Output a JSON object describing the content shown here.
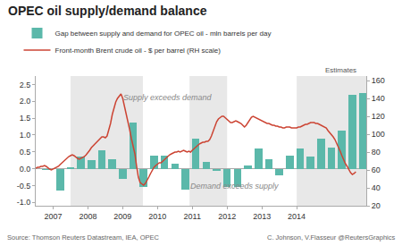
{
  "chart_data": {
    "type": "bar",
    "title": "OPEC oil supply/demand balance",
    "series": [
      {
        "name": "Gap between supply and demand for OPEC oil - mln barrels per day",
        "type": "bar",
        "color": "#5bb8aa",
        "axis": "y",
        "x": [
          2006.3,
          2006.7,
          2007.0,
          2007.3,
          2007.6,
          2007.9,
          2008.2,
          2008.5,
          2008.8,
          2009.1,
          2009.4,
          2009.7,
          2010.0,
          2010.3,
          2010.6,
          2010.9,
          2011.2,
          2011.5,
          2011.8,
          2012.1,
          2012.4,
          2012.7,
          2013.0,
          2013.3,
          2013.6,
          2013.9,
          2014.2,
          2014.5,
          2014.8,
          2015.1,
          2015.4
        ],
        "values": [
          -0.05,
          -0.65,
          0.05,
          0.35,
          0.25,
          0.55,
          0.28,
          -0.3,
          1.38,
          -0.55,
          0.38,
          0.4,
          0.15,
          -0.62,
          0.88,
          0.2,
          -0.07,
          -0.55,
          -0.55,
          0.1,
          0.6,
          0.28,
          -0.2,
          0.38,
          0.6,
          0.37,
          0.9,
          0.62,
          1.12,
          2.2,
          2.25
        ]
      },
      {
        "name": "Front-month Brent crude oil - $ per barrel (RH scale)",
        "type": "line",
        "color": "#cc4433",
        "axis": "y2",
        "x": [
          2006.0,
          2006.05,
          2006.1,
          2006.15,
          2006.2,
          2006.25,
          2006.3,
          2006.35,
          2006.4,
          2006.45,
          2006.5,
          2006.55,
          2006.6,
          2006.65,
          2006.7,
          2006.75,
          2006.8,
          2006.85,
          2006.9,
          2006.95,
          2007.0,
          2007.05,
          2007.1,
          2007.15,
          2007.2,
          2007.25,
          2007.3,
          2007.35,
          2007.4,
          2007.45,
          2007.5,
          2007.55,
          2007.6,
          2007.65,
          2007.7,
          2007.75,
          2007.8,
          2007.85,
          2007.9,
          2007.95,
          2008.0,
          2008.05,
          2008.1,
          2008.15,
          2008.2,
          2008.25,
          2008.3,
          2008.35,
          2008.4,
          2008.45,
          2008.5,
          2008.55,
          2008.6,
          2008.65,
          2008.7,
          2008.75,
          2008.8,
          2008.85,
          2008.9,
          2008.95,
          2009.0,
          2009.05,
          2009.1,
          2009.15,
          2009.2,
          2009.25,
          2009.3,
          2009.35,
          2009.4,
          2009.45,
          2009.5,
          2009.55,
          2009.6,
          2009.65,
          2009.7,
          2009.75,
          2009.8,
          2009.85,
          2009.9,
          2009.95,
          2010.0,
          2010.05,
          2010.1,
          2010.15,
          2010.2,
          2010.25,
          2010.3,
          2010.35,
          2010.4,
          2010.45,
          2010.5,
          2010.55,
          2010.6,
          2010.65,
          2010.7,
          2010.75,
          2010.8,
          2010.85,
          2010.9,
          2010.95,
          2011.0,
          2011.05,
          2011.1,
          2011.15,
          2011.2,
          2011.25,
          2011.3,
          2011.35,
          2011.4,
          2011.45,
          2011.5,
          2011.55,
          2011.6,
          2011.65,
          2011.7,
          2011.75,
          2011.8,
          2011.85,
          2011.9,
          2011.95,
          2012.0,
          2012.05,
          2012.1,
          2012.15,
          2012.2,
          2012.25,
          2012.3,
          2012.35,
          2012.4,
          2012.45,
          2012.5,
          2012.55,
          2012.6,
          2012.65,
          2012.7,
          2012.75,
          2012.8,
          2012.85,
          2012.9,
          2012.95,
          2013.0,
          2013.05,
          2013.1,
          2013.15,
          2013.2,
          2013.25,
          2013.3,
          2013.35,
          2013.4,
          2013.45,
          2013.5,
          2013.55,
          2013.6,
          2013.65,
          2013.7,
          2013.75,
          2013.8,
          2013.85,
          2013.9,
          2013.95,
          2014.0,
          2014.05,
          2014.1,
          2014.15,
          2014.2,
          2014.25,
          2014.3,
          2014.35,
          2014.4,
          2014.45,
          2014.5,
          2014.55,
          2014.6,
          2014.65,
          2014.7,
          2014.75,
          2014.8,
          2014.85,
          2014.9,
          2014.95,
          2015.0,
          2015.05,
          2015.1,
          2015.15,
          2015.2
        ],
        "values": [
          62,
          63,
          63,
          64,
          64,
          65,
          64,
          62,
          61,
          60,
          61,
          62,
          63,
          64,
          66,
          68,
          70,
          72,
          73,
          75,
          76,
          77,
          76,
          74,
          73,
          72,
          73,
          74,
          75,
          77,
          79,
          82,
          85,
          87,
          90,
          92,
          94,
          96,
          97,
          97,
          96,
          98,
          104,
          112,
          122,
          130,
          136,
          140,
          143,
          145,
          140,
          132,
          124,
          115,
          105,
          95,
          87,
          78,
          64,
          52,
          46,
          44,
          43,
          45,
          48,
          52,
          56,
          60,
          63,
          65,
          67,
          68,
          68,
          70,
          72,
          74,
          75,
          77,
          78,
          79,
          80,
          80,
          81,
          80,
          81,
          82,
          81,
          80,
          81,
          80,
          82,
          84,
          86,
          88,
          89,
          90,
          91,
          91,
          92,
          92,
          94,
          98,
          104,
          110,
          114,
          117,
          119,
          120,
          120,
          118,
          116,
          114,
          113,
          113,
          114,
          115,
          114,
          113,
          112,
          110,
          108,
          110,
          113,
          117,
          119,
          120,
          119,
          118,
          117,
          116,
          115,
          114,
          113,
          112,
          112,
          111,
          110,
          110,
          109,
          109,
          108,
          108,
          107,
          107,
          108,
          108,
          108,
          107,
          107,
          107,
          107,
          108,
          108,
          109,
          110,
          111,
          111,
          112,
          113,
          113,
          113,
          112,
          112,
          111,
          110,
          109,
          108,
          107,
          104,
          102,
          100,
          97,
          94,
          90,
          86,
          81,
          76,
          71,
          67,
          64,
          60,
          57,
          55,
          56,
          58
        ]
      }
    ],
    "xlim": [
      2006.0,
      2015.5
    ],
    "xticks": [
      {
        "value": 2006.5,
        "label": "2007"
      },
      {
        "value": 2007.5,
        "label": "2008"
      },
      {
        "value": 2008.5,
        "label": "2009"
      },
      {
        "value": 2009.5,
        "label": "2010"
      },
      {
        "value": 2010.5,
        "label": "2011"
      },
      {
        "value": 2011.5,
        "label": "2012"
      },
      {
        "value": 2012.5,
        "label": "2013"
      },
      {
        "value": 2013.5,
        "label": "2014"
      }
    ],
    "ylim": [
      -1.1,
      2.75
    ],
    "yticks": [
      {
        "value": -1.0,
        "label": "-1.0"
      },
      -0.5,
      {
        "value": 0.0,
        "label": "0.0"
      },
      0.5,
      {
        "value": 1.0,
        "label": "1.0"
      },
      1.5,
      {
        "value": 2.0,
        "label": "2.0"
      },
      2.5
    ],
    "y2lim": [
      20,
      165
    ],
    "y2ticks": [
      20,
      40,
      60,
      80,
      100,
      120,
      140,
      160
    ],
    "shaded": {
      "ranges": [
        [
          2007.0,
          2009.08
        ],
        [
          2010.42,
          2011.5
        ],
        [
          2013.5,
          2015.5
        ]
      ],
      "color": "#e8e8e8"
    },
    "annotations": [
      "Supply exceeds demand",
      "Demand exceeds supply",
      "Estimates"
    ],
    "source": [
      "Source: Thomson Reuters Datastream, IEA, OPEC",
      "C. Johnson, V.Flasseur @ReutersGraphics"
    ],
    "grid": false,
    "legend": "top left"
  }
}
